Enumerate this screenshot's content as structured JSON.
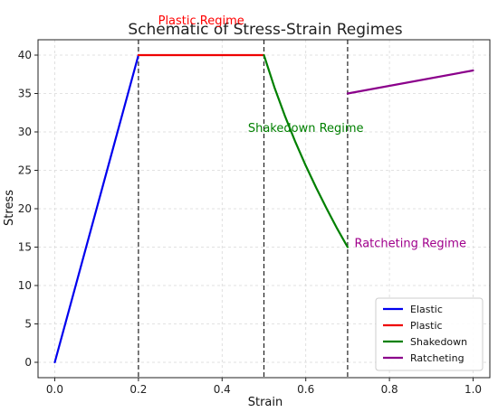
{
  "chart_data": {
    "type": "line",
    "title": "Schematic of Stress-Strain Regimes",
    "xlabel": "Strain",
    "ylabel": "Stress",
    "xlim": [
      -0.04,
      1.04
    ],
    "ylim": [
      -2,
      42
    ],
    "xticks": [
      0.0,
      0.2,
      0.4,
      0.6,
      0.8,
      1.0
    ],
    "xtick_labels": [
      "0.0",
      "0.2",
      "0.4",
      "0.6",
      "0.8",
      "1.0"
    ],
    "yticks": [
      0,
      5,
      10,
      15,
      20,
      25,
      30,
      35,
      40
    ],
    "ytick_labels": [
      "0",
      "5",
      "10",
      "15",
      "20",
      "25",
      "30",
      "35",
      "40"
    ],
    "grid": true,
    "legend_position": "lower-right",
    "vertical_lines": [
      0.2,
      0.5,
      0.7
    ],
    "series": [
      {
        "name": "Elastic",
        "color": "#0000ee",
        "x": [
          0.0,
          0.2
        ],
        "y": [
          0,
          40
        ]
      },
      {
        "name": "Plastic",
        "color": "#ee0000",
        "x": [
          0.2,
          0.5
        ],
        "y": [
          40,
          40
        ]
      },
      {
        "name": "Shakedown",
        "color": "#008000",
        "x": [
          0.5,
          0.525,
          0.55,
          0.575,
          0.6,
          0.625,
          0.65,
          0.675,
          0.7
        ],
        "y": [
          40,
          35.8,
          32.1,
          28.7,
          25.6,
          22.7,
          20.0,
          17.4,
          15
        ]
      },
      {
        "name": "Ratcheting",
        "color": "#8b008b",
        "x": [
          0.7,
          1.0
        ],
        "y": [
          35,
          38
        ]
      }
    ],
    "annotations": [
      {
        "text": "Plastic Regime",
        "x": 0.35,
        "y": 44,
        "color": "#ff0000"
      },
      {
        "text": "Shakedown Regime",
        "x": 0.6,
        "y": 30,
        "color": "#008000"
      },
      {
        "text": "Ratcheting Regime",
        "x": 0.85,
        "y": 15,
        "color": "#a0008c"
      }
    ]
  }
}
